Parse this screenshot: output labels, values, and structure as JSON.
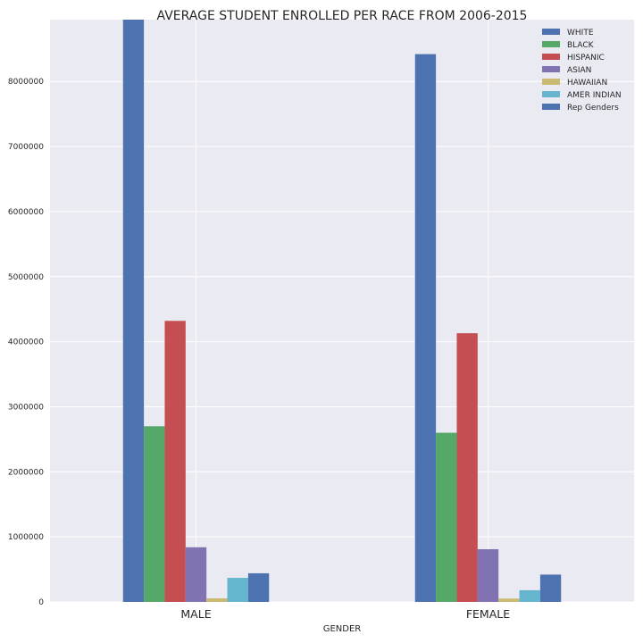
{
  "chart_data": {
    "type": "bar",
    "title": "AVERAGE STUDENT ENROLLED PER RACE FROM 2006-2015",
    "xlabel": "GENDER",
    "ylabel": "",
    "categories": [
      "MALE",
      "FEMALE"
    ],
    "ylim": [
      0,
      8950000
    ],
    "yticks": [
      0,
      1000000,
      2000000,
      3000000,
      4000000,
      5000000,
      6000000,
      7000000,
      8000000
    ],
    "ytick_labels": [
      "0",
      "1000000",
      "2000000",
      "3000000",
      "4000000",
      "5000000",
      "6000000",
      "7000000",
      "8000000"
    ],
    "grid": true,
    "legend_position": "top-right",
    "series": [
      {
        "name": "WHITE",
        "color": "#4c72b0",
        "values": [
          8950000,
          8420000
        ]
      },
      {
        "name": "BLACK",
        "color": "#55a868",
        "values": [
          2700000,
          2600000
        ]
      },
      {
        "name": "HISPANIC",
        "color": "#c44e52",
        "values": [
          4320000,
          4130000
        ]
      },
      {
        "name": "ASIAN",
        "color": "#8172b2",
        "values": [
          840000,
          810000
        ]
      },
      {
        "name": "HAWAIIAN",
        "color": "#ccb974",
        "values": [
          55000,
          52000
        ]
      },
      {
        "name": "AMER INDIAN",
        "color": "#64b5cd",
        "values": [
          370000,
          180000
        ]
      },
      {
        "name": "Rep Genders",
        "color": "#4c72b0",
        "values": [
          440000,
          420000
        ]
      }
    ]
  }
}
